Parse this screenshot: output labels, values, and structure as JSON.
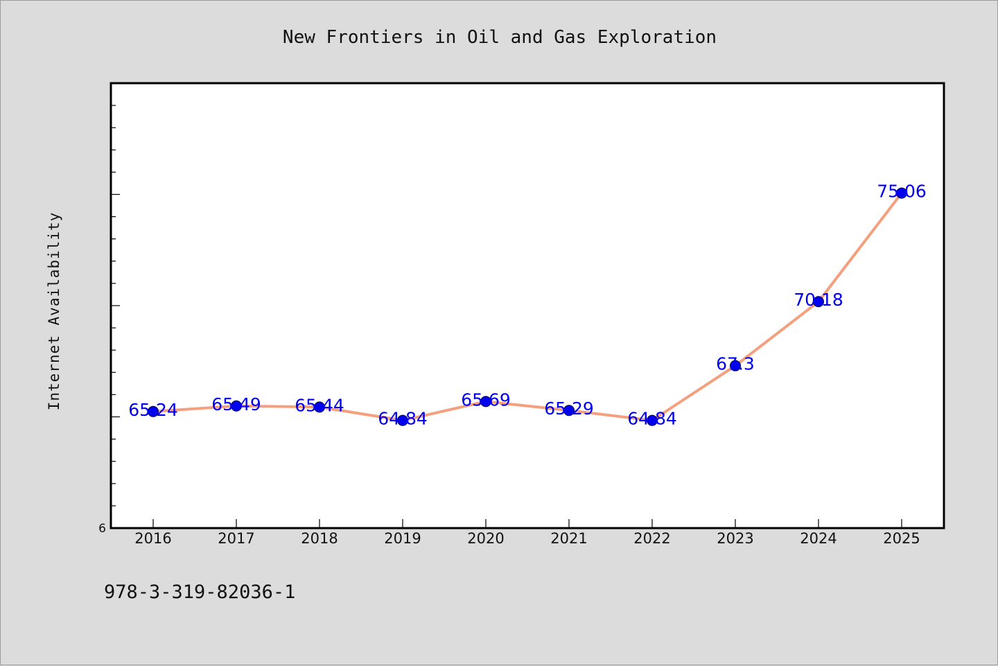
{
  "chart_data": {
    "type": "line",
    "title": "New Frontiers in Oil and Gas Exploration",
    "xlabel": "",
    "ylabel": "Internet Availability",
    "categories": [
      "2016",
      "2017",
      "2018",
      "2019",
      "2020",
      "2021",
      "2022",
      "2023",
      "2024",
      "2025"
    ],
    "series": [
      {
        "values": [
          65.24,
          65.49,
          65.44,
          64.84,
          65.69,
          65.29,
          64.84,
          67.3,
          70.18,
          75.06
        ],
        "labels": [
          "65.24",
          "65.49",
          "65.44",
          "64.84",
          "65.69",
          "65.29",
          "64.84",
          "67.3",
          "70.18",
          "75.06"
        ]
      }
    ],
    "y_tick_labels": [
      "6"
    ],
    "ylim": [
      60,
      80
    ],
    "grid": false,
    "colors": {
      "line": "#f4a07e",
      "marker": "#0000ee",
      "label": "#0000ee",
      "plot_bg": "#ffffff",
      "page_bg": "#dcdcdc"
    }
  },
  "footer": {
    "isbn": "978-3-319-82036-1"
  }
}
